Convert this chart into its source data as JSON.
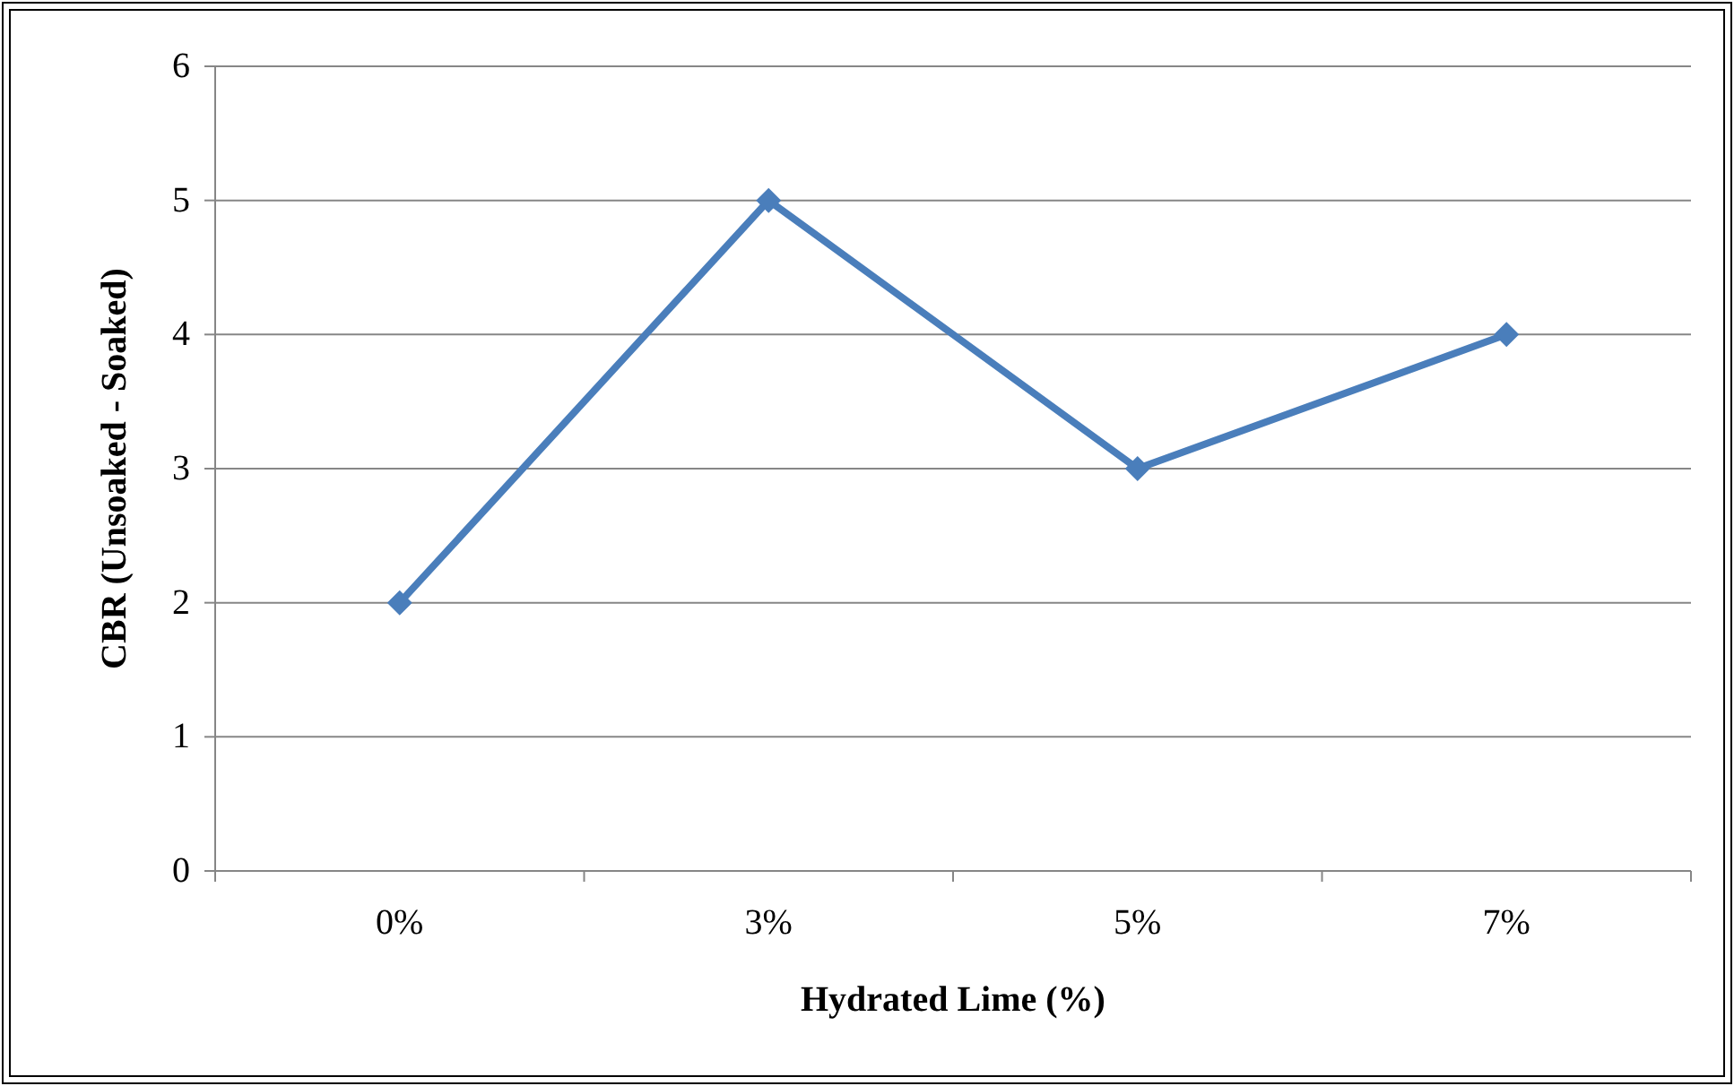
{
  "chart_data": {
    "type": "line",
    "xlabel": "Hydrated Lime (%)",
    "ylabel": "CBR (Unsoaked - Soaked)",
    "categories": [
      "0%",
      "3%",
      "5%",
      "7%"
    ],
    "series": [
      {
        "color": "#4a7ebb",
        "values": [
          2,
          5,
          3,
          4
        ]
      }
    ],
    "ylim": [
      0,
      6
    ],
    "yticks": [
      0,
      1,
      2,
      3,
      4,
      5,
      6
    ],
    "grid": "y",
    "marker": "diamond",
    "line_style": "solid"
  }
}
